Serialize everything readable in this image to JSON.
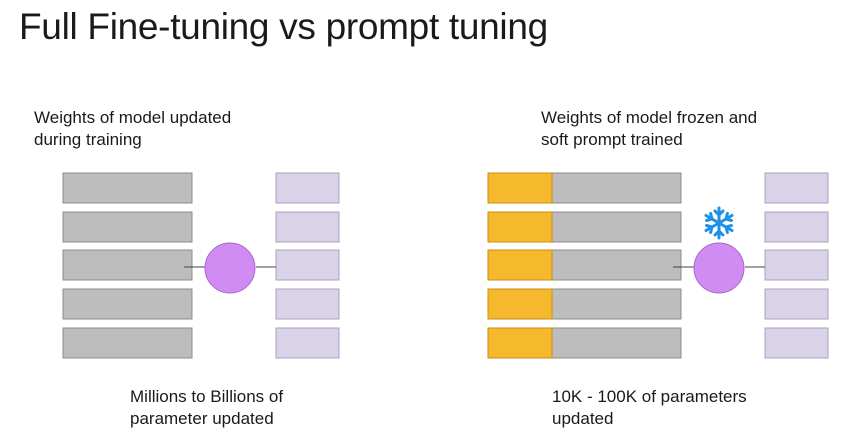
{
  "title": "Full Fine-tuning vs prompt tuning",
  "left_panel": {
    "heading_line1": "Weights of model updated",
    "heading_line2": "during training",
    "footer_line1": "Millions to Billions of",
    "footer_line2": "parameter updated"
  },
  "right_panel": {
    "heading_line1": "Weights of model frozen and",
    "heading_line2": "soft prompt trained",
    "footer_line1": "10K - 100K of parameters",
    "footer_line2": "updated"
  },
  "colors": {
    "weight_block": "#bdbdbd",
    "weight_border": "#8c8c8c",
    "output_block": "#d9d2e9",
    "output_border": "#a8a0bc",
    "soft_prompt": "#f6b82d",
    "neuron": "#d08cf2",
    "frozen_icon": "#1e90e6"
  },
  "icons": {
    "frozen": "snowflake-icon"
  }
}
